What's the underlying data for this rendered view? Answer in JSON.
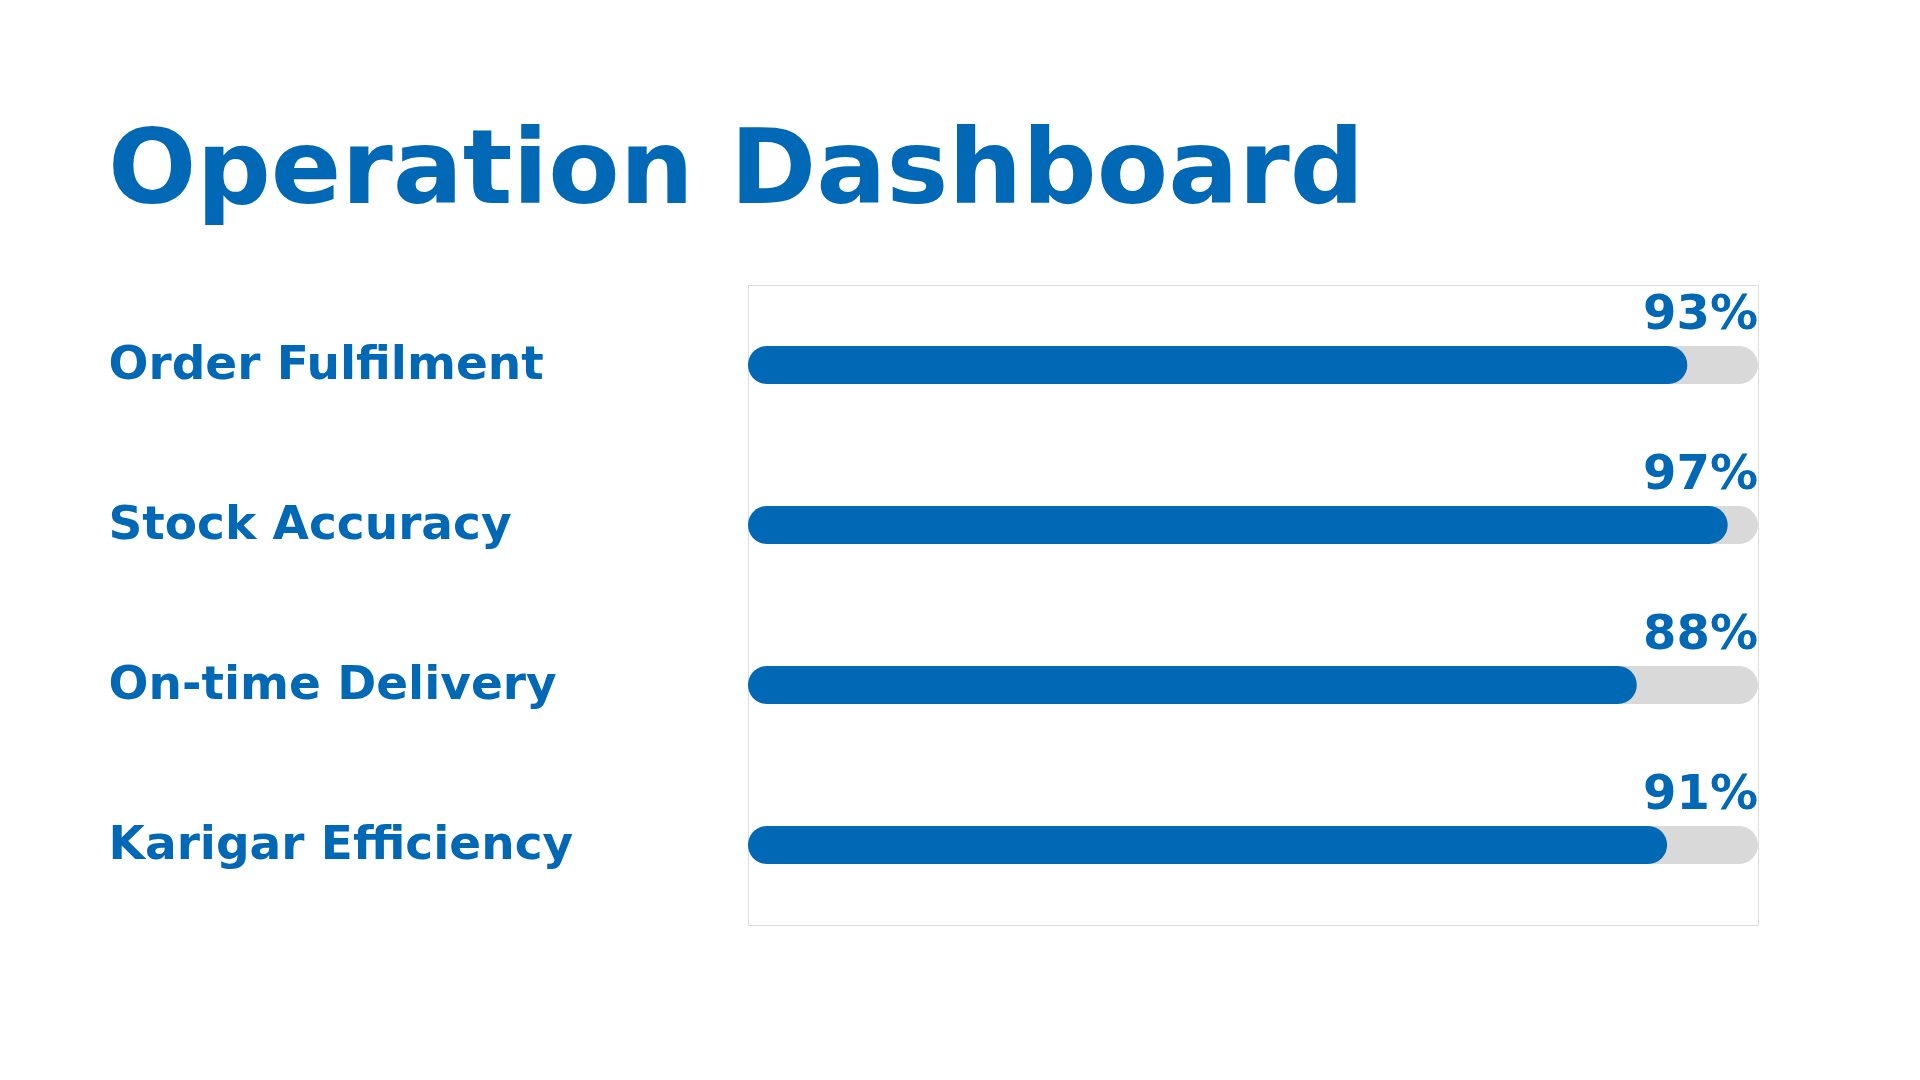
{
  "chart_data": {
    "type": "bar",
    "orientation": "horizontal",
    "title": "Operation Dashboard",
    "categories": [
      "Order Fulfilment",
      "Stock Accuracy",
      "On-time Delivery",
      "Karigar Efficiency"
    ],
    "values": [
      93,
      97,
      88,
      91
    ],
    "value_labels": [
      "93%",
      "97%",
      "88%",
      "91%"
    ],
    "color": "#0068b5",
    "xlim": [
      0,
      100
    ],
    "tick_labels": "y"
  }
}
